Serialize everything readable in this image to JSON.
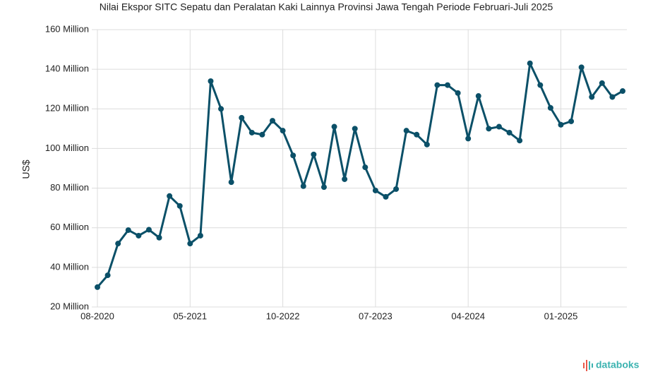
{
  "chart_data": {
    "type": "line",
    "title": "Nilai Ekspor SITC Sepatu dan Peralatan Kaki Lainnya Provinsi Jawa Tengah Periode Februari-Juli 2025",
    "y_label": "US$",
    "categories": [
      "08-2020",
      null,
      null,
      null,
      null,
      null,
      null,
      null,
      null,
      "05-2021",
      null,
      null,
      null,
      null,
      null,
      null,
      null,
      null,
      "10-2022",
      null,
      null,
      null,
      null,
      null,
      null,
      null,
      null,
      "07-2023",
      null,
      null,
      null,
      null,
      null,
      null,
      null,
      null,
      "04-2024",
      null,
      null,
      null,
      null,
      null,
      null,
      null,
      null,
      "01-2025",
      null,
      null,
      null,
      null,
      null,
      null
    ],
    "series": [
      {
        "name": "Nilai Ekspor",
        "color": "#0b5068",
        "values": [
          30,
          36,
          52,
          58.8,
          56,
          59,
          55,
          76,
          71,
          52,
          56,
          134,
          120,
          83,
          115.5,
          108,
          107,
          114,
          109,
          96.5,
          81,
          97,
          80.5,
          111,
          84.5,
          110,
          90.5,
          78.8,
          75.6,
          79.5,
          109,
          107,
          102,
          132,
          132,
          128,
          105,
          126.5,
          110,
          111,
          108,
          104,
          143,
          132,
          120.5,
          112,
          113.7,
          141,
          126,
          133,
          126,
          129
        ]
      }
    ],
    "ylim": [
      20,
      160
    ],
    "yticks": [
      {
        "value": 20,
        "label": "20 Million"
      },
      {
        "value": 40,
        "label": "40 Million"
      },
      {
        "value": 60,
        "label": "60 Million"
      },
      {
        "value": 80,
        "label": "80 Million"
      },
      {
        "value": 100,
        "label": "100 Million"
      },
      {
        "value": 120,
        "label": "120 Million"
      },
      {
        "value": 140,
        "label": "140 Million"
      },
      {
        "value": 160,
        "label": "160 Million"
      }
    ],
    "grid": true
  },
  "brand": "databoks"
}
